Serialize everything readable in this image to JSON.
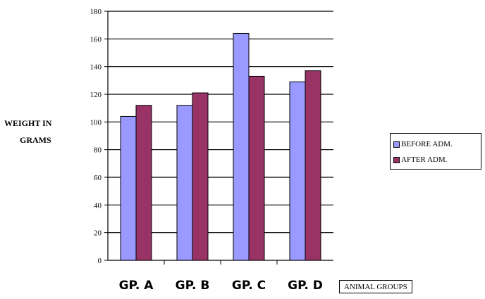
{
  "chart_data": {
    "type": "bar",
    "categories": [
      "GP. A",
      "GP. B",
      "GP. C",
      "GP. D"
    ],
    "series": [
      {
        "name": "BEFORE ADM.",
        "values": [
          104,
          112,
          164,
          129
        ],
        "color": "#9999ff"
      },
      {
        "name": "AFTER ADM.",
        "values": [
          112,
          121,
          133,
          137
        ],
        "color": "#993366"
      }
    ],
    "ylabel_line1": "WEIGHT IN",
    "ylabel_line2": "GRAMS",
    "xlabel": "ANIMAL GROUPS",
    "ylim": [
      0,
      180
    ],
    "yticks": [
      0,
      20,
      40,
      60,
      80,
      100,
      120,
      140,
      160,
      180
    ],
    "grid": true,
    "legend_position": "right"
  }
}
